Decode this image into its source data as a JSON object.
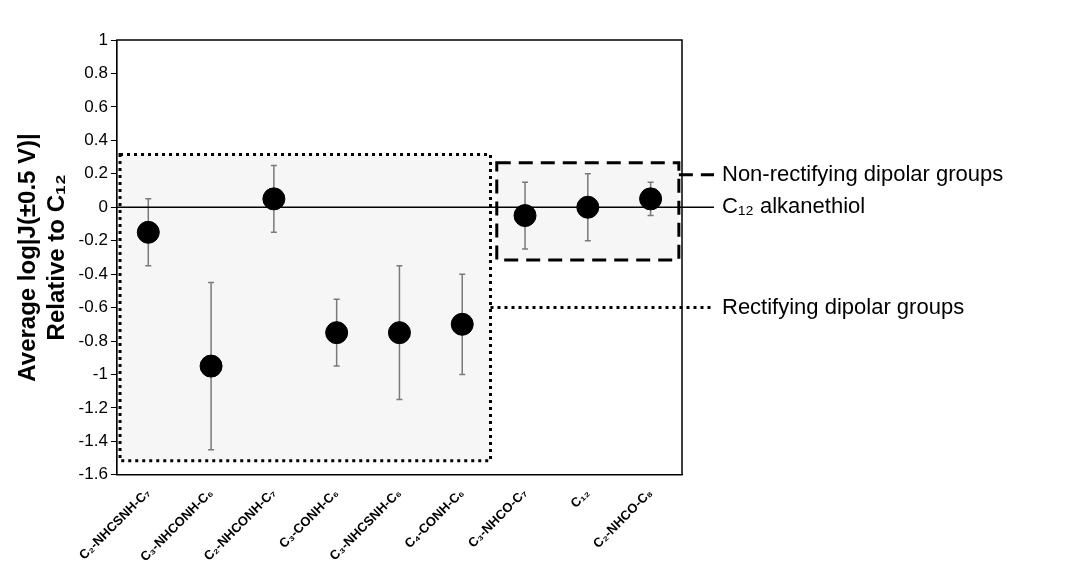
{
  "chart_data": {
    "type": "scatter",
    "ylabel": "Average log|J(±0.5 V)|\nRelative to C₁₂",
    "categories": [
      "C₂-NHCSNH-C₇",
      "C₃-NHCONH-C₆",
      "C₂-NHCONH-C₇",
      "C₃-CONH-C₆",
      "C₃-NHCSNH-C₆",
      "C₄-CONH-C₆",
      "C₃-NHCO-C₇",
      "C₁₂",
      "C₂-NHCO-C₈"
    ],
    "series": [
      {
        "color": "#000000",
        "values": [
          -0.15,
          -0.95,
          0.05,
          -0.75,
          -0.75,
          -0.7,
          -0.05,
          0,
          0.05
        ],
        "errors": [
          0.2,
          0.5,
          0.2,
          0.2,
          0.4,
          0.3,
          0.2,
          0.2,
          0.1
        ]
      }
    ],
    "ylim": [
      -1.6,
      1
    ],
    "yticks": [
      -1.6,
      -1.4,
      -1.2,
      -1,
      -0.8,
      -0.6,
      -0.4,
      -0.2,
      0,
      0.2,
      0.4,
      0.6,
      0.8,
      1
    ],
    "ref_lines": [
      {
        "axis": "y",
        "value": 0,
        "label": "C₁₂ alkanethiol",
        "color": "#000000"
      }
    ],
    "bands": [
      {
        "axis": "x",
        "from": "C₃-NHCO-C₇",
        "to": "C₂-NHCO-C₈",
        "label": "Non-rectifying dipolar groups"
      },
      {
        "axis": "x",
        "from": "C₂-NHCSNH-C₇",
        "to": "C₄-CONH-C₆",
        "label": "Rectifying dipolar groups"
      }
    ],
    "grid": false,
    "legend": false,
    "marker": "circle"
  }
}
